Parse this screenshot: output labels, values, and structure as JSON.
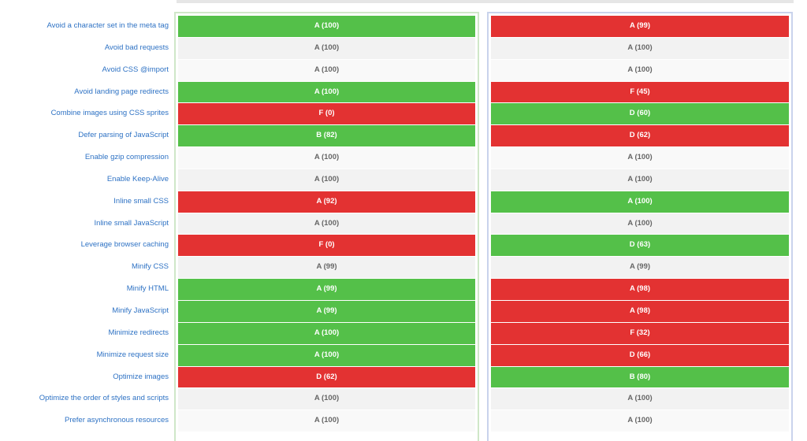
{
  "colors": {
    "link": "#2e72c4",
    "good": "#54c049",
    "bad": "#e33232",
    "neutral_text": "#666666"
  },
  "rows": [
    {
      "label": "Avoid a character set in the meta tag",
      "a": {
        "text": "A (100)",
        "status": "good"
      },
      "b": {
        "text": "A (99)",
        "status": "bad"
      }
    },
    {
      "label": "Avoid bad requests",
      "a": {
        "text": "A (100)",
        "status": "neutral"
      },
      "b": {
        "text": "A (100)",
        "status": "neutral"
      }
    },
    {
      "label": "Avoid CSS @import",
      "a": {
        "text": "A (100)",
        "status": "neutral"
      },
      "b": {
        "text": "A (100)",
        "status": "neutral"
      }
    },
    {
      "label": "Avoid landing page redirects",
      "a": {
        "text": "A (100)",
        "status": "good"
      },
      "b": {
        "text": "F (45)",
        "status": "bad"
      }
    },
    {
      "label": "Combine images using CSS sprites",
      "a": {
        "text": "F (0)",
        "status": "bad"
      },
      "b": {
        "text": "D (60)",
        "status": "good"
      }
    },
    {
      "label": "Defer parsing of JavaScript",
      "a": {
        "text": "B (82)",
        "status": "good"
      },
      "b": {
        "text": "D (62)",
        "status": "bad"
      }
    },
    {
      "label": "Enable gzip compression",
      "a": {
        "text": "A (100)",
        "status": "neutral"
      },
      "b": {
        "text": "A (100)",
        "status": "neutral"
      }
    },
    {
      "label": "Enable Keep-Alive",
      "a": {
        "text": "A (100)",
        "status": "neutral"
      },
      "b": {
        "text": "A (100)",
        "status": "neutral"
      }
    },
    {
      "label": "Inline small CSS",
      "a": {
        "text": "A (92)",
        "status": "bad"
      },
      "b": {
        "text": "A (100)",
        "status": "good"
      }
    },
    {
      "label": "Inline small JavaScript",
      "a": {
        "text": "A (100)",
        "status": "neutral"
      },
      "b": {
        "text": "A (100)",
        "status": "neutral"
      }
    },
    {
      "label": "Leverage browser caching",
      "a": {
        "text": "F (0)",
        "status": "bad"
      },
      "b": {
        "text": "D (63)",
        "status": "good"
      }
    },
    {
      "label": "Minify CSS",
      "a": {
        "text": "A (99)",
        "status": "neutral"
      },
      "b": {
        "text": "A (99)",
        "status": "neutral"
      }
    },
    {
      "label": "Minify HTML",
      "a": {
        "text": "A (99)",
        "status": "good"
      },
      "b": {
        "text": "A (98)",
        "status": "bad"
      }
    },
    {
      "label": "Minify JavaScript",
      "a": {
        "text": "A (99)",
        "status": "good"
      },
      "b": {
        "text": "A (98)",
        "status": "bad"
      }
    },
    {
      "label": "Minimize redirects",
      "a": {
        "text": "A (100)",
        "status": "good"
      },
      "b": {
        "text": "F (32)",
        "status": "bad"
      }
    },
    {
      "label": "Minimize request size",
      "a": {
        "text": "A (100)",
        "status": "good"
      },
      "b": {
        "text": "D (66)",
        "status": "bad"
      }
    },
    {
      "label": "Optimize images",
      "a": {
        "text": "D (62)",
        "status": "bad"
      },
      "b": {
        "text": "B (80)",
        "status": "good"
      }
    },
    {
      "label": "Optimize the order of styles and scripts",
      "a": {
        "text": "A (100)",
        "status": "neutral"
      },
      "b": {
        "text": "A (100)",
        "status": "neutral"
      }
    },
    {
      "label": "Prefer asynchronous resources",
      "a": {
        "text": "A (100)",
        "status": "neutral"
      },
      "b": {
        "text": "A (100)",
        "status": "neutral"
      }
    }
  ]
}
